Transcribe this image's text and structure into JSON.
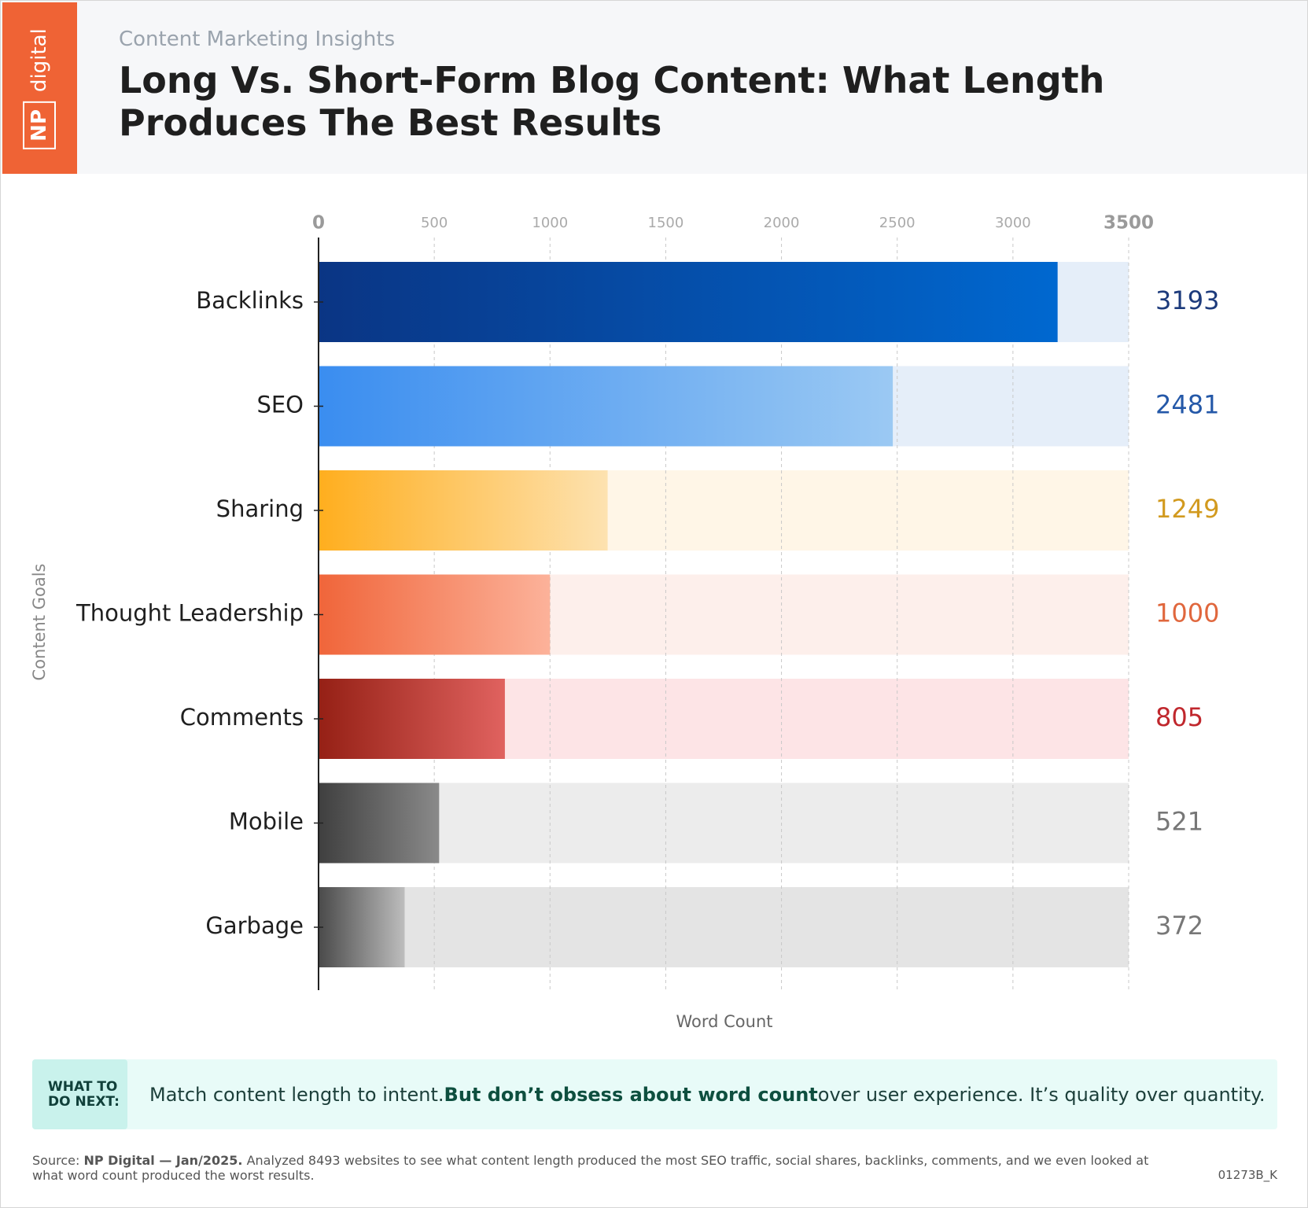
{
  "header": {
    "logo_np": "NP",
    "logo_digital": "digital",
    "subtitle": "Content Marketing Insights",
    "title": "Long Vs. Short-Form Blog Content: What Length Produces The Best Results"
  },
  "chart_data": {
    "type": "bar",
    "orientation": "horizontal",
    "categories": [
      "Backlinks",
      "SEO",
      "Sharing",
      "Thought Leadership",
      "Comments",
      "Mobile",
      "Garbage"
    ],
    "values": [
      3193,
      2481,
      1249,
      1000,
      805,
      521,
      372
    ],
    "colors": [
      "#0a3584",
      "#3a8df0",
      "#ffae1e",
      "#f0653a",
      "#952015",
      "#3f3f3f",
      "#4a4a4a"
    ],
    "end_colors": [
      "#0068d0",
      "#9bc9f3",
      "#fde2b0",
      "#fcb29a",
      "#e0625f",
      "#8a8a8a",
      "#bdbdbd"
    ],
    "track_colors": [
      "#e5eef9",
      "#e5eef9",
      "#fff6e7",
      "#fdefeb",
      "#fde4e6",
      "#ececec",
      "#e4e4e4"
    ],
    "value_label_colors": [
      "#1d3b7c",
      "#2458a8",
      "#d29a1f",
      "#e0673d",
      "#c0272d",
      "#777777",
      "#777777"
    ],
    "xlim": [
      0,
      3500
    ],
    "xticks": [
      0,
      500,
      1000,
      1500,
      2000,
      2500,
      3000,
      3500
    ],
    "xlabel": "Word Count",
    "ylabel": "Content Goals",
    "grid": true
  },
  "callout": {
    "label": "WHAT TO DO NEXT:",
    "text_start": "Match content length to intent.",
    "text_bold": "But don’t obsess about word count",
    "text_end": "over user experience. It’s quality over quantity."
  },
  "footer": {
    "source_label": "Source:",
    "source_bold": "NP Digital — Jan/2025.",
    "source_text": "Analyzed 8493 websites to see what content length produced the most SEO traffic, social shares, backlinks, comments, and we even looked at what word count produced the worst results.",
    "code": "01273B_K"
  }
}
